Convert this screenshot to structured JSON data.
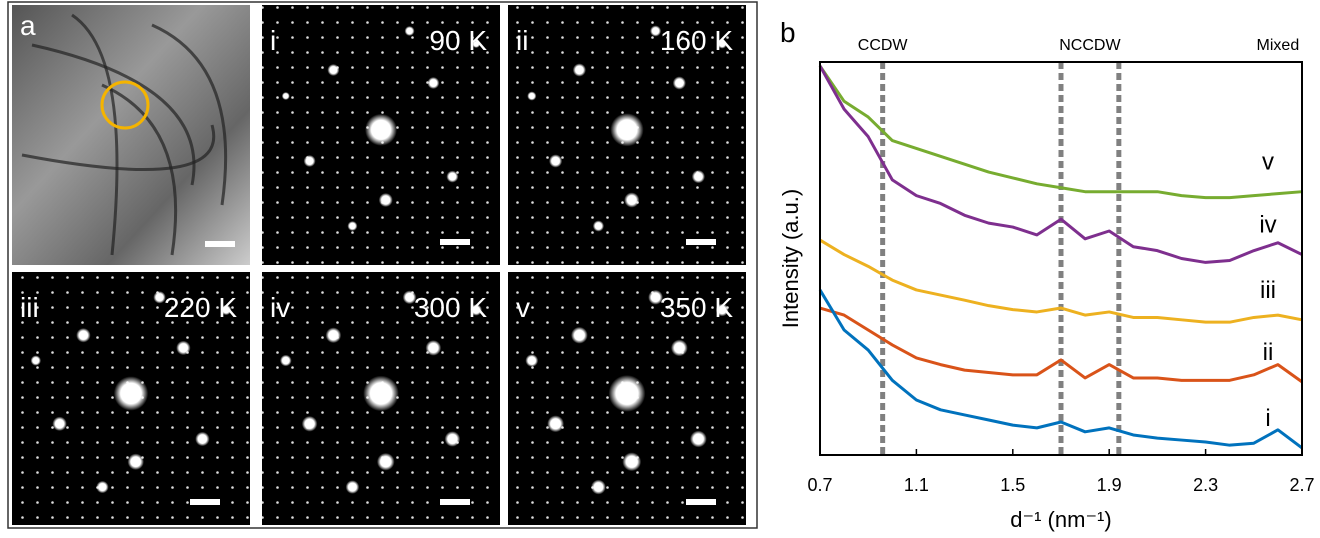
{
  "image_panels": [
    {
      "label": "a"
    },
    {
      "label": "i",
      "temperature": "90 K"
    },
    {
      "label": "ii",
      "temperature": "160 K"
    },
    {
      "label": "iii",
      "temperature": "220 K"
    },
    {
      "label": "iv",
      "temperature": "300 K"
    },
    {
      "label": "v",
      "temperature": "350 K"
    }
  ],
  "chart_data": {
    "type": "line",
    "panel_label": "b",
    "x_label": "d⁻¹ (nm⁻¹)",
    "y_label": "Intensity (a.u.)",
    "x": [
      0.7,
      0.8,
      0.9,
      1.0,
      1.1,
      1.2,
      1.3,
      1.4,
      1.5,
      1.6,
      1.7,
      1.8,
      1.9,
      2.0,
      2.1,
      2.2,
      2.3,
      2.4,
      2.5,
      2.6,
      2.7
    ],
    "xlim": [
      0.7,
      2.7
    ],
    "xticks": [
      0.7,
      1.1,
      1.5,
      1.9,
      2.3,
      2.7
    ],
    "ylim": [
      0,
      100
    ],
    "vlines": [
      0.96,
      1.7,
      1.94
    ],
    "annotations": [
      {
        "text": "CCDW",
        "x": 0.96
      },
      {
        "text": "NCCDW",
        "x": 1.82
      },
      {
        "text": "Mixed",
        "x": 2.6
      }
    ],
    "series": [
      {
        "name": "v",
        "color": "#77ac30",
        "values": [
          99,
          90,
          86,
          80,
          78,
          76,
          74,
          72,
          70.5,
          69,
          68,
          67,
          67,
          67,
          67,
          66,
          65.5,
          65.5,
          66,
          66.5,
          67
        ]
      },
      {
        "name": "iv",
        "color": "#7e2f8e",
        "values": [
          99,
          88,
          81,
          70,
          66,
          64,
          61,
          59,
          58,
          56,
          60,
          55,
          57,
          53,
          52,
          50,
          49,
          49.5,
          52,
          54,
          51
        ]
      },
      {
        "name": "iii",
        "color": "#edb120",
        "values": [
          54.7,
          51,
          48,
          44.5,
          42,
          40.7,
          39.4,
          38,
          37,
          36.4,
          37.4,
          35.6,
          36.4,
          35,
          35,
          34.4,
          33.8,
          33.8,
          35,
          35.6,
          34.4
        ]
      },
      {
        "name": "ii",
        "color": "#d95319",
        "values": [
          37.4,
          35.6,
          31.8,
          28,
          24.7,
          23,
          21.6,
          21,
          20.4,
          20.4,
          24.2,
          19.6,
          23,
          19.6,
          19.6,
          19,
          19,
          19,
          20.4,
          23,
          18.6
        ]
      },
      {
        "name": "i",
        "color": "#0072bd",
        "values": [
          42,
          31.8,
          26.7,
          19,
          14,
          11.5,
          10.2,
          8.9,
          7.6,
          6.9,
          8.4,
          5.9,
          6.9,
          5.1,
          4.3,
          3.8,
          3.3,
          2.5,
          3,
          6.4,
          1.8
        ]
      }
    ]
  }
}
